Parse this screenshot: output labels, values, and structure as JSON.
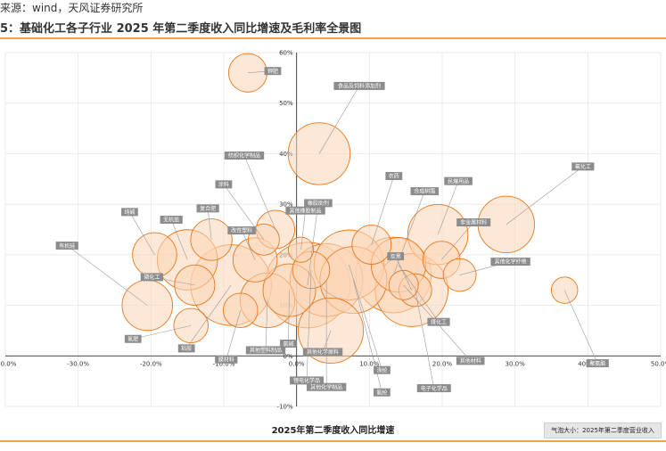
{
  "header": {
    "source": "来源：wind，天风证券研究所",
    "title": "5：基础化工各子行业 2025 年第二季度收入同比增速及毛利率全景图"
  },
  "footer": {
    "bubble_note": "气泡大小：2025年第二季度营业收入"
  },
  "colors": {
    "bubble_fill": "#fbd6b6",
    "bubble_stroke": "#e8781e",
    "label_bg": "#8c8c8c",
    "grid": "#e3e3e3",
    "accent": "#f0a050"
  },
  "chart_data": {
    "type": "scatter",
    "title": "",
    "xlabel": "2025年第二季度收入同比增速",
    "ylabel": "",
    "xlim": [
      -0.4,
      0.5
    ],
    "ylim": [
      -0.1,
      0.6
    ],
    "x_ticks": [
      "-40.0%",
      "-30.0%",
      "-20.0%",
      "-10.0%",
      "0.0%",
      "10.0%",
      "20.0%",
      "30.0%",
      "40.0%",
      "50.0%"
    ],
    "y_ticks": [
      "-10%",
      "0%",
      "10%",
      "20%",
      "30%",
      "40%",
      "50%",
      "60%"
    ],
    "grid": true,
    "points": [
      {
        "name": "钾肥",
        "x": -0.067,
        "y": 0.56,
        "size": 2.2
      },
      {
        "name": "食品及饲料添加剂",
        "x": 0.031,
        "y": 0.4,
        "size": 7.5
      },
      {
        "name": "纺织化学制品",
        "x": -0.029,
        "y": 0.25,
        "size": 2.2
      },
      {
        "name": "涂料",
        "x": -0.045,
        "y": 0.23,
        "size": 1.2
      },
      {
        "name": "其他橡胶制品",
        "x": 0.006,
        "y": 0.21,
        "size": 0.6
      },
      {
        "name": "改性塑料",
        "x": -0.057,
        "y": 0.19,
        "size": 3.2
      },
      {
        "name": "复合肥",
        "x": -0.117,
        "y": 0.23,
        "size": 2.7
      },
      {
        "name": "无机盐",
        "x": -0.15,
        "y": 0.19,
        "size": 7.0
      },
      {
        "name": "纯碱",
        "x": -0.195,
        "y": 0.2,
        "size": 3.2
      },
      {
        "name": "有机硅",
        "x": -0.205,
        "y": 0.1,
        "size": 4.5
      },
      {
        "name": "磷化工",
        "x": -0.14,
        "y": 0.14,
        "size": 2.5
      },
      {
        "name": "氮肥",
        "x": -0.145,
        "y": 0.06,
        "size": 1.6
      },
      {
        "name": "粘胶",
        "x": -0.09,
        "y": 0.14,
        "size": 14.0
      },
      {
        "name": "膜材料",
        "x": -0.077,
        "y": 0.09,
        "size": 1.6
      },
      {
        "name": "其他塑料制品",
        "x": -0.04,
        "y": 0.11,
        "size": 5.5
      },
      {
        "name": "氯碱",
        "x": -0.01,
        "y": 0.13,
        "size": 5.0
      },
      {
        "name": "锂电化学品",
        "x": 0.02,
        "y": 0.17,
        "size": 2.0
      },
      {
        "name": "橡胶助剂",
        "x": 0.015,
        "y": 0.14,
        "size": 16.0
      },
      {
        "name": "其他化学原料",
        "x": 0.047,
        "y": 0.05,
        "size": 8.5
      },
      {
        "name": "其他化学制品",
        "x": 0.041,
        "y": 0.15,
        "size": 11.0
      },
      {
        "name": "涤纶",
        "x": 0.072,
        "y": 0.18,
        "size": 10.0
      },
      {
        "name": "农药",
        "x": 0.103,
        "y": 0.22,
        "size": 2.3
      },
      {
        "name": "氨纶",
        "x": 0.078,
        "y": 0.15,
        "size": 9.0
      },
      {
        "name": "合成树脂",
        "x": 0.133,
        "y": 0.16,
        "size": 12.0
      },
      {
        "name": "煤化工",
        "x": 0.14,
        "y": 0.18,
        "size": 5.5
      },
      {
        "name": "炭黑",
        "x": 0.158,
        "y": 0.13,
        "size": 11.0
      },
      {
        "name": "民爆用品",
        "x": 0.194,
        "y": 0.24,
        "size": 7.0
      },
      {
        "name": "非金属材料",
        "x": 0.199,
        "y": 0.19,
        "size": 2.0
      },
      {
        "name": "其他化学纤维",
        "x": 0.224,
        "y": 0.16,
        "size": 1.4
      },
      {
        "name": "电子化学品",
        "x": 0.163,
        "y": 0.13,
        "size": 1.4
      },
      {
        "name": "其他材料",
        "x": 0.147,
        "y": 0.14,
        "size": 1.0
      },
      {
        "name": "氟化工",
        "x": 0.288,
        "y": 0.26,
        "size": 6.0
      },
      {
        "name": "聚氨酯",
        "x": 0.368,
        "y": 0.13,
        "size": 0.7
      }
    ],
    "labels": [
      {
        "text": "钾肥"
      },
      {
        "text": "食品及饲料添加剂"
      },
      {
        "text": "纺织化学制品"
      },
      {
        "text": "涂料"
      },
      {
        "text": "其他橡胶制品"
      },
      {
        "text": "改性塑料"
      },
      {
        "text": "复合肥"
      },
      {
        "text": "无机盐"
      },
      {
        "text": "纯碱"
      },
      {
        "text": "有机硅"
      },
      {
        "text": "磷化工"
      },
      {
        "text": "氮肥"
      },
      {
        "text": "粘胶"
      },
      {
        "text": "膜材料"
      },
      {
        "text": "其他塑料制品"
      },
      {
        "text": "氯碱"
      },
      {
        "text": "锂电化学品"
      },
      {
        "text": "橡胶助剂"
      },
      {
        "text": "其他化学原料"
      },
      {
        "text": "其他化学制品"
      },
      {
        "text": "涤纶"
      },
      {
        "text": "农药"
      },
      {
        "text": "氨纶"
      },
      {
        "text": "合成树脂"
      },
      {
        "text": "煤化工"
      },
      {
        "text": "炭黑"
      },
      {
        "text": "民爆用品"
      },
      {
        "text": "非金属材料"
      },
      {
        "text": "其他化学纤维"
      },
      {
        "text": "电子化学品"
      },
      {
        "text": "其他材料"
      },
      {
        "text": "氟化工"
      },
      {
        "text": "聚氨酯"
      }
    ]
  }
}
